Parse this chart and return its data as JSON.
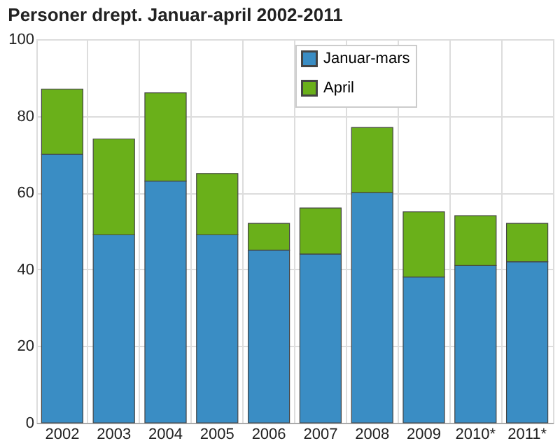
{
  "chart_data": {
    "type": "bar",
    "title": "Personer drept. Januar-april 2002-2011",
    "stacked": true,
    "categories": [
      "2002",
      "2003",
      "2004",
      "2005",
      "2006",
      "2007",
      "2008",
      "2009",
      "2010*",
      "2011*"
    ],
    "series": [
      {
        "name": "Januar-mars",
        "color": "#3a8dc4",
        "values": [
          70,
          49,
          63,
          49,
          45,
          44,
          60,
          38,
          41,
          42
        ]
      },
      {
        "name": "April",
        "color": "#6ab01a",
        "values": [
          17,
          25,
          23,
          16,
          7,
          12,
          17,
          17,
          13,
          10
        ]
      }
    ],
    "ylim": [
      0,
      100
    ],
    "yticks": [
      0,
      20,
      40,
      60,
      80,
      100
    ],
    "grid": true,
    "legend": "top right"
  }
}
